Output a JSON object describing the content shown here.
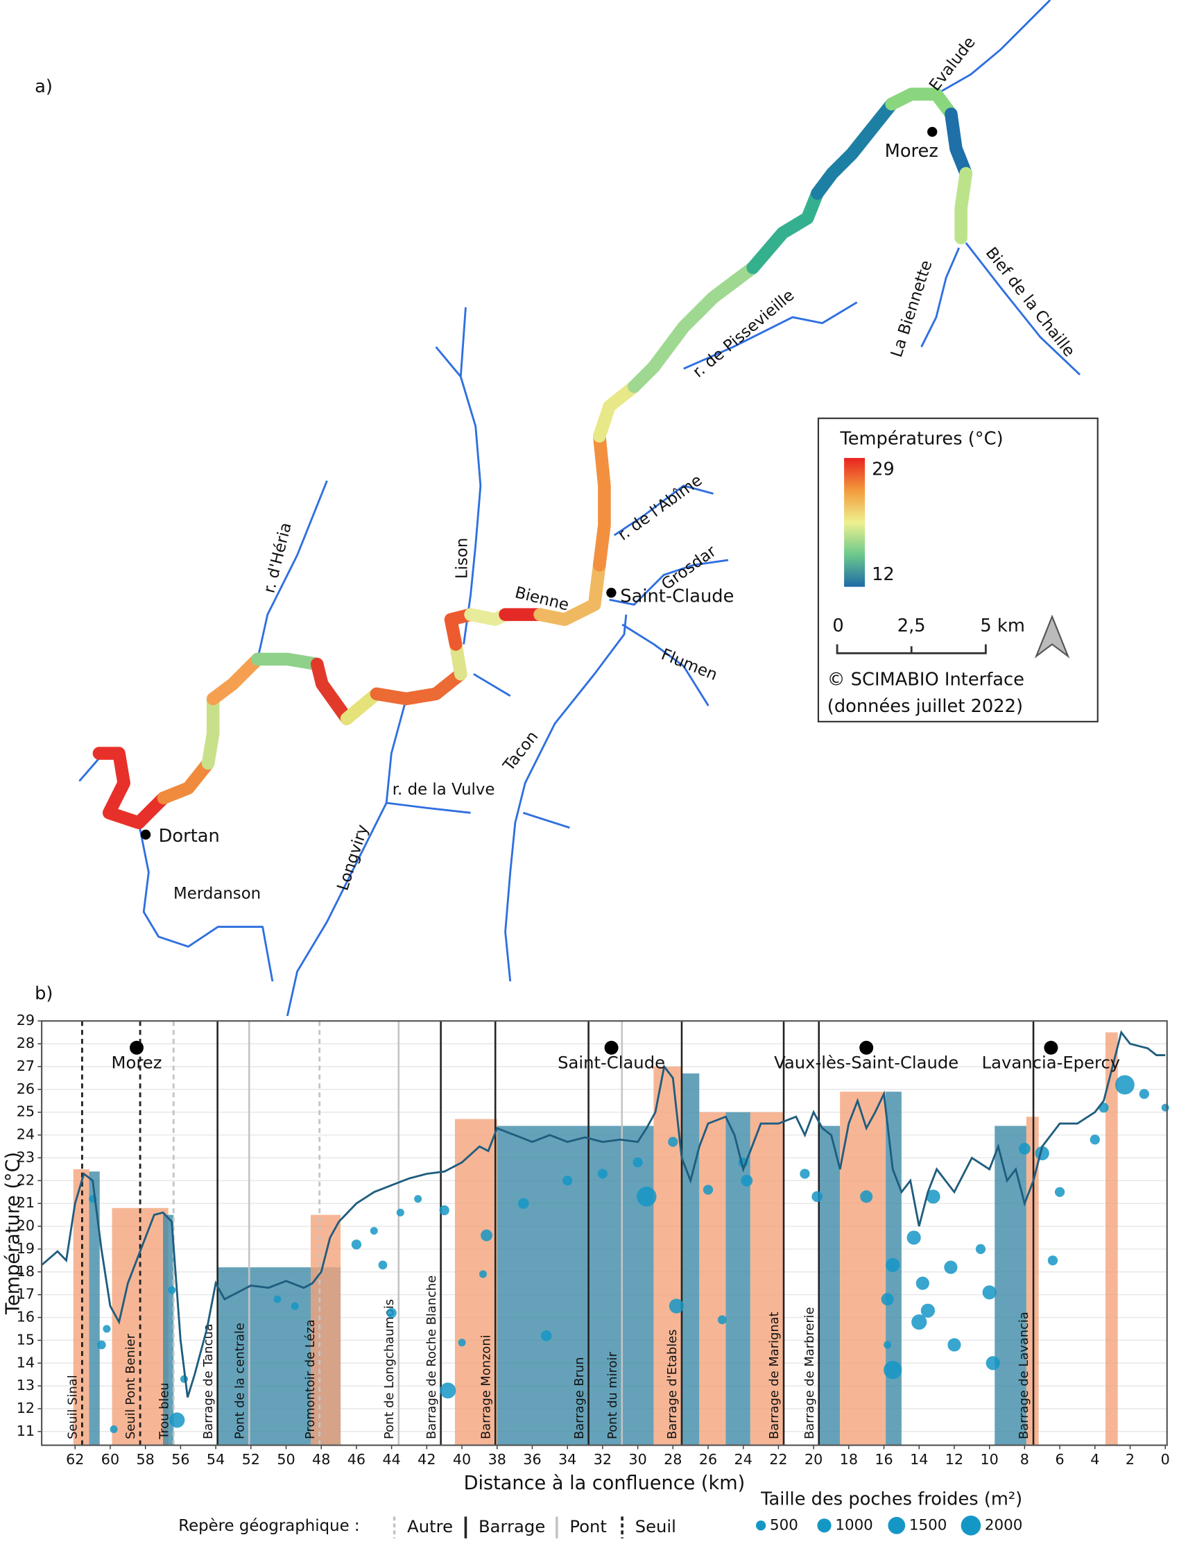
{
  "panel_a": {
    "label": "a)",
    "places": [
      "Evalude",
      "Morez",
      "Bief de la Chaille",
      "La Biennette",
      "r. de Pissevieille",
      "r. de l'Abîme",
      "Grosdar",
      "Saint-Claude",
      "Flumen",
      "Tacon",
      "Bienne",
      "Lison",
      "r. d'Héria",
      "r. de la Vulve",
      "Longviry",
      "Dortan",
      "Merdanson"
    ],
    "legend": {
      "title": "Températures (°C)",
      "max": 29,
      "min": 12,
      "scale": [
        "0",
        "2,5",
        "5 km"
      ],
      "credit": "© SCIMABIO Interface",
      "date": "(données juillet 2022)"
    }
  },
  "chart_data": {
    "type": "line",
    "panel_label": "b)",
    "xlabel": "Distance à la confluence (km)",
    "ylabel": "Température (°C)",
    "xlim": [
      63.9,
      -0.1
    ],
    "ylim": [
      10.4,
      29
    ],
    "xticks": [
      62,
      60,
      58,
      56,
      54,
      52,
      50,
      48,
      46,
      44,
      42,
      40,
      38,
      36,
      34,
      32,
      30,
      28,
      26,
      24,
      22,
      20,
      18,
      16,
      14,
      12,
      10,
      8,
      6,
      4,
      2,
      0
    ],
    "yticks": [
      11,
      12,
      13,
      14,
      15,
      16,
      17,
      18,
      19,
      20,
      21,
      22,
      23,
      24,
      25,
      26,
      27,
      28,
      29
    ],
    "grid": true,
    "line_color": "#1f5d7e",
    "x": [
      63.9,
      63,
      62.5,
      62,
      61.5,
      61,
      60.5,
      60,
      59.5,
      59,
      58.5,
      58,
      57.5,
      57,
      56.5,
      56,
      55.6,
      55.2,
      54.5,
      54,
      53.5,
      53,
      52,
      51,
      50,
      49,
      48.5,
      48,
      47.5,
      47,
      46,
      45,
      44,
      43,
      42,
      41,
      40,
      39,
      38.5,
      38,
      37,
      36,
      35,
      34,
      33,
      32,
      31,
      30,
      29.5,
      29,
      28.5,
      28,
      27.5,
      27,
      26.5,
      26,
      25,
      24.5,
      24,
      23.5,
      23,
      22,
      21,
      20.5,
      20,
      19.5,
      19,
      18.5,
      18,
      17.5,
      17,
      16.5,
      16,
      15.5,
      15,
      14.5,
      14,
      13.5,
      13,
      12,
      11,
      10,
      9.5,
      9,
      8.5,
      8,
      7.5,
      7,
      6,
      5,
      4,
      3.5,
      3,
      2.5,
      2,
      1,
      0.5,
      0
    ],
    "values": [
      18.3,
      18.9,
      18.5,
      21,
      22.3,
      22,
      19,
      16.5,
      15.8,
      17.5,
      18.5,
      19.5,
      20.5,
      20.6,
      20.2,
      15,
      12.5,
      13.5,
      15.5,
      17.5,
      16.8,
      17,
      17.4,
      17.3,
      17.6,
      17.3,
      17.5,
      18,
      19.5,
      20.2,
      21,
      21.5,
      21.8,
      22.1,
      22.3,
      22.4,
      22.8,
      23.5,
      23.3,
      24.3,
      24,
      23.7,
      24,
      23.7,
      23.9,
      23.7,
      23.8,
      23.7,
      24.3,
      25,
      27,
      26.5,
      23,
      22,
      23.5,
      24.5,
      24.8,
      24,
      22.5,
      23.5,
      24.5,
      24.5,
      24.8,
      24,
      25,
      24.3,
      24,
      22.5,
      24.5,
      25.5,
      24.3,
      25,
      25.8,
      22.5,
      21.5,
      22,
      20,
      21.5,
      22.5,
      21.5,
      23,
      22.5,
      23.5,
      22,
      22.5,
      21,
      22,
      23.5,
      24.5,
      24.5,
      25,
      25.5,
      27,
      28.5,
      28,
      27.8,
      27.5,
      27.5
    ],
    "pockets": {
      "color": "#1597c6",
      "x": [
        61,
        60.5,
        60.2,
        59.8,
        56.5,
        56.2,
        55.8,
        50.5,
        49.5,
        46,
        45,
        44.5,
        44,
        43.5,
        42.5,
        41,
        40.8,
        40,
        38.8,
        38.6,
        36.5,
        35.2,
        34,
        32,
        30,
        29.5,
        28,
        27.8,
        26,
        25.2,
        24,
        23.8,
        20.5,
        19.8,
        17,
        15.8,
        15.5,
        15.5,
        15.8,
        14.3,
        14,
        13.8,
        13.5,
        13.2,
        12.2,
        12,
        10.5,
        10,
        9.8,
        8,
        7,
        6,
        6.4,
        4,
        3.5,
        2.3,
        1.2,
        0
      ],
      "values": [
        21.2,
        14.8,
        15.5,
        11.1,
        17.2,
        11.5,
        13.3,
        16.8,
        16.5,
        19.2,
        19.8,
        18.3,
        16.2,
        20.6,
        21.2,
        20.7,
        12.8,
        14.9,
        17.9,
        19.6,
        21,
        15.2,
        22,
        22.3,
        22.8,
        21.3,
        23.7,
        16.5,
        21.6,
        15.9,
        22.8,
        22,
        22.3,
        21.3,
        21.3,
        14.8,
        18.3,
        13.7,
        16.8,
        19.5,
        15.8,
        17.5,
        16.3,
        21.3,
        18.2,
        14.8,
        19,
        17.1,
        14,
        23.4,
        23.2,
        21.5,
        18.5,
        23.8,
        25.2,
        26.2,
        25.8,
        25.2
      ],
      "sizes": [
        300,
        400,
        300,
        300,
        300,
        1200,
        300,
        300,
        300,
        500,
        300,
        400,
        500,
        300,
        300,
        500,
        1300,
        300,
        300,
        700,
        600,
        600,
        500,
        500,
        500,
        2000,
        500,
        1100,
        500,
        400,
        500,
        700,
        500,
        600,
        800,
        300,
        1000,
        1700,
        800,
        1000,
        1200,
        900,
        1000,
        1000,
        900,
        900,
        500,
        1000,
        1000,
        700,
        1000,
        500,
        500,
        500,
        500,
        1900,
        500,
        300
      ]
    },
    "zones": [
      {
        "x": [
          62.1,
          61.2
        ],
        "top": 22.5,
        "color": "#f4a47c"
      },
      {
        "x": [
          61.2,
          60.6
        ],
        "top": 22.4,
        "color": "#3f8ba8"
      },
      {
        "x": [
          59.9,
          56.7
        ],
        "top": 20.8,
        "color": "#f4a47c"
      },
      {
        "x": [
          57.0,
          56.4
        ],
        "top": 20.5,
        "color": "#3f8ba8"
      },
      {
        "x": [
          53.9,
          46.9
        ],
        "top": 18.2,
        "color": "#3f8ba8"
      },
      {
        "x": [
          48.6,
          46.9
        ],
        "top": 20.5,
        "color": "#f4a47c"
      },
      {
        "x": [
          40.4,
          38.0
        ],
        "top": 24.7,
        "color": "#f4a47c"
      },
      {
        "x": [
          38.0,
          29.1
        ],
        "top": 24.4,
        "color": "#3f8ba8"
      },
      {
        "x": [
          29.1,
          27.5
        ],
        "top": 27,
        "color": "#f4a47c"
      },
      {
        "x": [
          27.5,
          26.5
        ],
        "top": 26.7,
        "color": "#3f8ba8"
      },
      {
        "x": [
          26.5,
          25.0
        ],
        "top": 25,
        "color": "#f4a47c"
      },
      {
        "x": [
          25.0,
          23.6
        ],
        "top": 25,
        "color": "#3f8ba8"
      },
      {
        "x": [
          23.6,
          21.7
        ],
        "top": 25,
        "color": "#f4a47c"
      },
      {
        "x": [
          19.7,
          18.5
        ],
        "top": 24.4,
        "color": "#3f8ba8"
      },
      {
        "x": [
          18.5,
          15.9
        ],
        "top": 25.9,
        "color": "#f4a47c"
      },
      {
        "x": [
          15.9,
          15.0
        ],
        "top": 25.9,
        "color": "#3f8ba8"
      },
      {
        "x": [
          9.7,
          7.9
        ],
        "top": 24.4,
        "color": "#3f8ba8"
      },
      {
        "x": [
          7.9,
          7.2
        ],
        "top": 24.8,
        "color": "#f4a47c"
      },
      {
        "x": [
          3.4,
          2.7
        ],
        "top": 28.5,
        "color": "#f4a47c"
      }
    ],
    "landmark_title": "Repère géographique :",
    "landmark_kinds": [
      {
        "name": "Autre",
        "color": "#c4c4c4",
        "dashed": true
      },
      {
        "name": "Barrage",
        "color": "#222222",
        "dashed": false
      },
      {
        "name": "Pont",
        "color": "#c4c4c4",
        "dashed": false
      },
      {
        "name": "Seuil",
        "color": "#222222",
        "dashed": true
      }
    ],
    "landmarks": [
      {
        "x": 61.6,
        "label": "Seuil Sinal",
        "kind": 3
      },
      {
        "x": 58.3,
        "label": "Seuil Pont Benier",
        "kind": 3
      },
      {
        "x": 56.4,
        "label": "Trou bleu",
        "kind": 0
      },
      {
        "x": 53.9,
        "label": "Barrage de Tancua",
        "kind": 1
      },
      {
        "x": 52.1,
        "label": "Pont de la centrale",
        "kind": 2
      },
      {
        "x": 48.1,
        "label": "Promontoir de Léza",
        "kind": 0
      },
      {
        "x": 43.6,
        "label": "Pont de Longchaumois",
        "kind": 2
      },
      {
        "x": 41.2,
        "label": "Barrage de Roche Blanche",
        "kind": 1
      },
      {
        "x": 38.1,
        "label": "Barrage Monzoni",
        "kind": 1
      },
      {
        "x": 32.8,
        "label": "Barrage Brun",
        "kind": 1
      },
      {
        "x": 30.9,
        "label": "Pont du miroir",
        "kind": 2
      },
      {
        "x": 27.5,
        "label": "Barrage d'Etables",
        "kind": 1
      },
      {
        "x": 21.7,
        "label": "Barrage de Marignat",
        "kind": 1
      },
      {
        "x": 19.7,
        "label": "Barrage de Marbrerie",
        "kind": 1
      },
      {
        "x": 7.5,
        "label": "Barrage de Lavancia",
        "kind": 1
      }
    ],
    "towns": [
      {
        "x": 58.5,
        "name": "Morez"
      },
      {
        "x": 31.5,
        "name": "Saint-Claude"
      },
      {
        "x": 17,
        "name": "Vaux-lès-Saint-Claude"
      },
      {
        "x": 6.5,
        "name": "Lavancia-Epercy"
      }
    ],
    "size_legend": {
      "title": "Taille des poches froides (m²)",
      "sizes": [
        500,
        1000,
        1500,
        2000
      ]
    }
  }
}
